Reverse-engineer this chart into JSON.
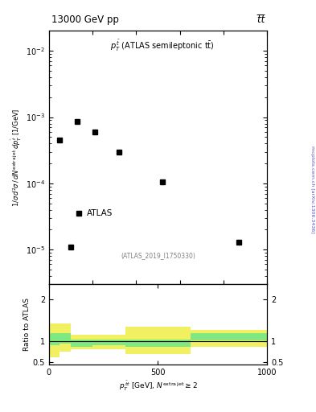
{
  "title_left": "13000 GeV pp",
  "title_right": "t̅t̅",
  "annotation": "p_T^{tbar} (ATLAS semileptonic ttbar)",
  "watermark": "(ATLAS_2019_I1750330)",
  "side_label": "mcplots.cern.ch [arXiv:1306.3436]",
  "data_x": [
    50,
    130,
    210,
    320,
    520,
    870
  ],
  "data_y": [
    0.00045,
    0.00085,
    0.0006,
    0.0003,
    0.000105,
    1.3e-05
  ],
  "data_x2": [
    100
  ],
  "data_y2": [
    1.1e-05
  ],
  "xlim": [
    0,
    1000
  ],
  "ylim_main": [
    3e-06,
    0.02
  ],
  "ylim_ratio": [
    0.45,
    2.35
  ],
  "ratio_bins": [
    0,
    50,
    100,
    200,
    350,
    650,
    1000
  ],
  "ratio_green_lo": [
    0.9,
    0.95,
    0.88,
    0.9,
    0.88,
    1.02
  ],
  "ratio_green_hi": [
    1.2,
    1.2,
    1.05,
    1.05,
    1.05,
    1.2
  ],
  "ratio_yellow_lo": [
    0.62,
    0.75,
    0.82,
    0.82,
    0.7,
    0.88
  ],
  "ratio_yellow_hi": [
    1.42,
    1.42,
    1.15,
    1.15,
    1.35,
    1.28
  ],
  "color_green": "#80e880",
  "color_yellow": "#f0f060",
  "color_data": "black",
  "marker": "s",
  "markersize": 4.5
}
